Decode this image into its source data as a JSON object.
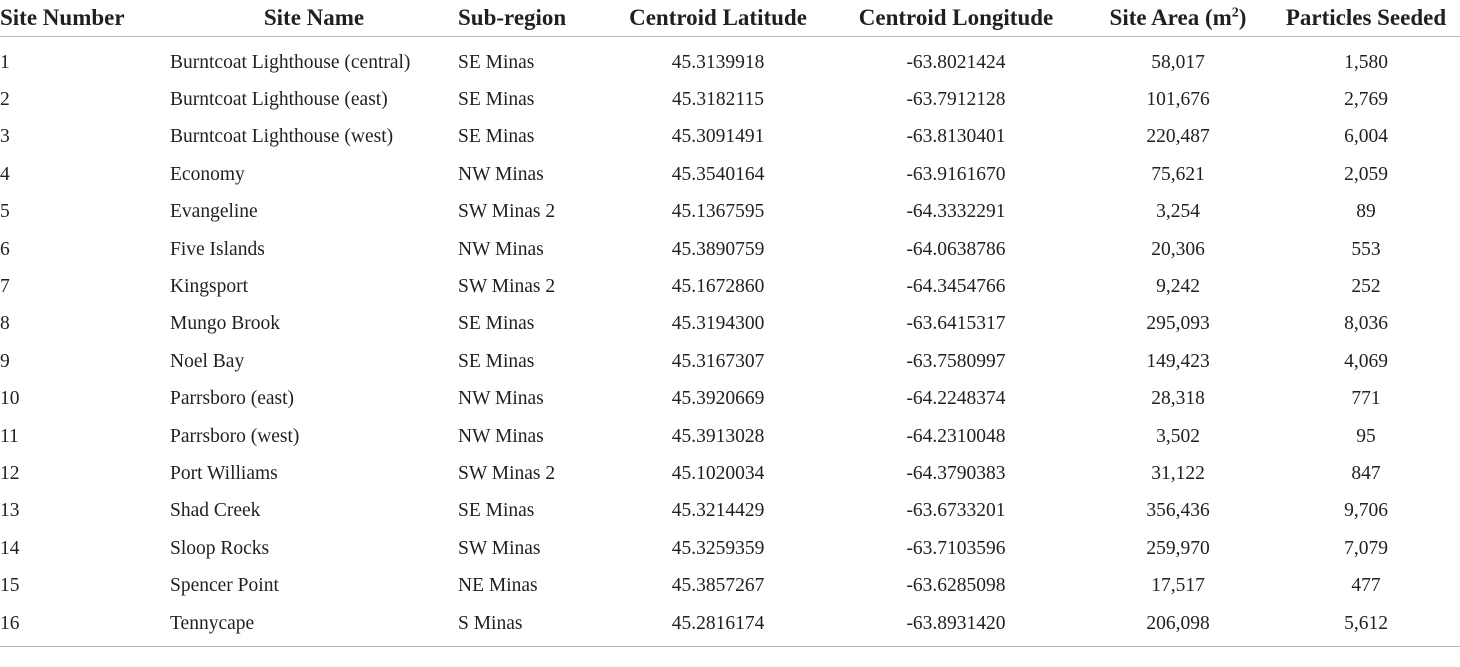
{
  "table": {
    "headers": {
      "site_number": "Site Number",
      "site_name": "Site Name",
      "sub_region": "Sub-region",
      "centroid_latitude": "Centroid Latitude",
      "centroid_longitude": "Centroid Longitude",
      "site_area": "Site Area (m",
      "site_area_sup": "2",
      "site_area_close": ")",
      "particles_seeded": "Particles Seeded"
    },
    "rows": [
      {
        "num": "1",
        "name": "Burntcoat Lighthouse (central)",
        "sub": "SE Minas",
        "lat": "45.3139918",
        "lon": "-63.8021424",
        "area": "58,017",
        "part": "1,580"
      },
      {
        "num": "2",
        "name": "Burntcoat Lighthouse (east)",
        "sub": "SE Minas",
        "lat": "45.3182115",
        "lon": "-63.7912128",
        "area": "101,676",
        "part": "2,769"
      },
      {
        "num": "3",
        "name": "Burntcoat Lighthouse (west)",
        "sub": "SE Minas",
        "lat": "45.3091491",
        "lon": "-63.8130401",
        "area": "220,487",
        "part": "6,004"
      },
      {
        "num": "4",
        "name": "Economy",
        "sub": "NW Minas",
        "lat": "45.3540164",
        "lon": "-63.9161670",
        "area": "75,621",
        "part": "2,059"
      },
      {
        "num": "5",
        "name": "Evangeline",
        "sub": "SW Minas 2",
        "lat": "45.1367595",
        "lon": "-64.3332291",
        "area": "3,254",
        "part": "89"
      },
      {
        "num": "6",
        "name": "Five Islands",
        "sub": "NW Minas",
        "lat": "45.3890759",
        "lon": "-64.0638786",
        "area": "20,306",
        "part": "553"
      },
      {
        "num": "7",
        "name": "Kingsport",
        "sub": "SW Minas 2",
        "lat": "45.1672860",
        "lon": "-64.3454766",
        "area": "9,242",
        "part": "252"
      },
      {
        "num": "8",
        "name": "Mungo Brook",
        "sub": "SE Minas",
        "lat": "45.3194300",
        "lon": "-63.6415317",
        "area": "295,093",
        "part": "8,036"
      },
      {
        "num": "9",
        "name": "Noel Bay",
        "sub": "SE Minas",
        "lat": "45.3167307",
        "lon": "-63.7580997",
        "area": "149,423",
        "part": "4,069"
      },
      {
        "num": "10",
        "name": "Parrsboro (east)",
        "sub": "NW Minas",
        "lat": "45.3920669",
        "lon": "-64.2248374",
        "area": "28,318",
        "part": "771"
      },
      {
        "num": "11",
        "name": "Parrsboro (west)",
        "sub": "NW Minas",
        "lat": "45.3913028",
        "lon": "-64.2310048",
        "area": "3,502",
        "part": "95"
      },
      {
        "num": "12",
        "name": "Port Williams",
        "sub": "SW Minas 2",
        "lat": "45.1020034",
        "lon": "-64.3790383",
        "area": "31,122",
        "part": "847"
      },
      {
        "num": "13",
        "name": "Shad Creek",
        "sub": "SE Minas",
        "lat": "45.3214429",
        "lon": "-63.6733201",
        "area": "356,436",
        "part": "9,706"
      },
      {
        "num": "14",
        "name": "Sloop Rocks",
        "sub": "SW Minas",
        "lat": "45.3259359",
        "lon": "-63.7103596",
        "area": "259,970",
        "part": "7,079"
      },
      {
        "num": "15",
        "name": "Spencer Point",
        "sub": "NE Minas",
        "lat": "45.3857267",
        "lon": "-63.6285098",
        "area": "17,517",
        "part": "477"
      },
      {
        "num": "16",
        "name": "Tennycape",
        "sub": "S Minas",
        "lat": "45.2816174",
        "lon": "-63.8931420",
        "area": "206,098",
        "part": "5,612"
      }
    ]
  }
}
